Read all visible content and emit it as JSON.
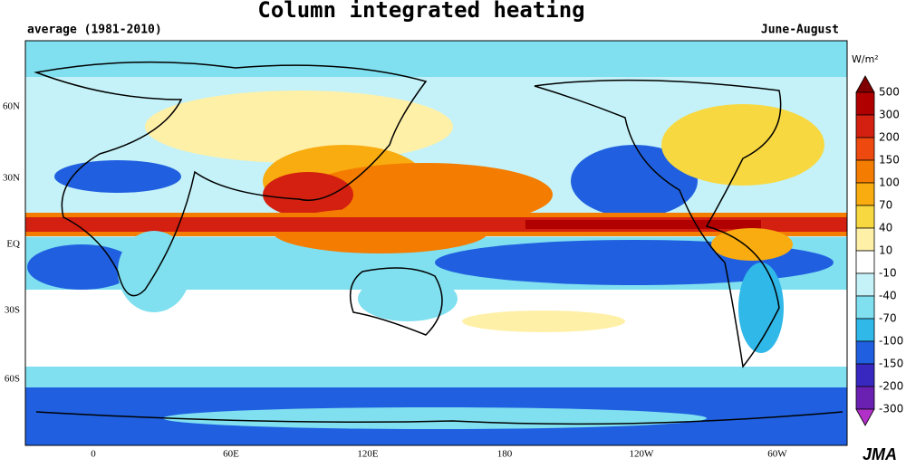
{
  "title": "Column integrated heating",
  "subtitle_left": "average (1981-2010)",
  "subtitle_right": "June-August",
  "latitude_labels": [
    "60N",
    "30N",
    "EQ",
    "30S",
    "60S"
  ],
  "longitude_labels": [
    "0",
    "60E",
    "120E",
    "180",
    "120W",
    "60W"
  ],
  "colorbar": {
    "unit": "W/m²",
    "levels": [
      500,
      300,
      200,
      150,
      100,
      70,
      40,
      10,
      -10,
      -40,
      -70,
      -100,
      -150,
      -200,
      -300
    ],
    "colors": [
      "#800000",
      "#b00000",
      "#d42010",
      "#ee4a10",
      "#f47c00",
      "#f8ac10",
      "#f8d840",
      "#fff0a8",
      "#ffffff",
      "#c4f2f8",
      "#80e0f0",
      "#30b8e8",
      "#2060e0",
      "#3828c0",
      "#6a20b0",
      "#b030c8"
    ]
  },
  "credit": "JMA"
}
